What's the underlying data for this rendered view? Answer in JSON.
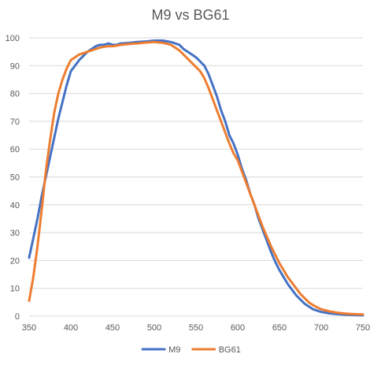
{
  "chart_data": {
    "type": "line",
    "title": "M9 vs BG61",
    "xlabel": "",
    "ylabel": "",
    "xlim": [
      350,
      750
    ],
    "ylim": [
      0,
      100
    ],
    "x_ticks": [
      350,
      400,
      450,
      500,
      550,
      600,
      650,
      700,
      750
    ],
    "y_ticks": [
      0,
      10,
      20,
      30,
      40,
      50,
      60,
      70,
      80,
      90,
      100
    ],
    "grid": true,
    "legend_position": "bottom",
    "series": [
      {
        "name": "M9",
        "color": "#4472C4",
        "points": [
          [
            350,
            21
          ],
          [
            355,
            28
          ],
          [
            360,
            35
          ],
          [
            365,
            43
          ],
          [
            370,
            50
          ],
          [
            375,
            57
          ],
          [
            380,
            64
          ],
          [
            385,
            71
          ],
          [
            390,
            77
          ],
          [
            395,
            83
          ],
          [
            400,
            88
          ],
          [
            405,
            90
          ],
          [
            410,
            92
          ],
          [
            415,
            93.5
          ],
          [
            420,
            95
          ],
          [
            425,
            96
          ],
          [
            430,
            97
          ],
          [
            435,
            97.5
          ],
          [
            440,
            97.5
          ],
          [
            445,
            98
          ],
          [
            450,
            97.5
          ],
          [
            455,
            97.5
          ],
          [
            460,
            98
          ],
          [
            470,
            98.2
          ],
          [
            480,
            98.5
          ],
          [
            490,
            98.7
          ],
          [
            500,
            99
          ],
          [
            510,
            99
          ],
          [
            520,
            98.5
          ],
          [
            530,
            97.5
          ],
          [
            535,
            96
          ],
          [
            540,
            95
          ],
          [
            545,
            94
          ],
          [
            550,
            93
          ],
          [
            555,
            91.5
          ],
          [
            560,
            90
          ],
          [
            565,
            87
          ],
          [
            570,
            83
          ],
          [
            575,
            79
          ],
          [
            580,
            74
          ],
          [
            585,
            70
          ],
          [
            590,
            65
          ],
          [
            595,
            62
          ],
          [
            600,
            58
          ],
          [
            605,
            53
          ],
          [
            610,
            49
          ],
          [
            615,
            44
          ],
          [
            620,
            40
          ],
          [
            625,
            35
          ],
          [
            630,
            31
          ],
          [
            635,
            27
          ],
          [
            640,
            23
          ],
          [
            645,
            19.5
          ],
          [
            650,
            16.5
          ],
          [
            655,
            14
          ],
          [
            660,
            11.5
          ],
          [
            665,
            9.5
          ],
          [
            670,
            7.5
          ],
          [
            675,
            6
          ],
          [
            680,
            4.5
          ],
          [
            685,
            3.5
          ],
          [
            690,
            2.5
          ],
          [
            695,
            2
          ],
          [
            700,
            1.5
          ],
          [
            710,
            1
          ],
          [
            720,
            0.7
          ],
          [
            730,
            0.5
          ],
          [
            740,
            0.4
          ],
          [
            750,
            0.3
          ]
        ]
      },
      {
        "name": "BG61",
        "color": "#ED7D31",
        "points": [
          [
            350,
            5.5
          ],
          [
            355,
            14
          ],
          [
            360,
            25
          ],
          [
            365,
            38
          ],
          [
            370,
            52
          ],
          [
            375,
            63
          ],
          [
            380,
            73
          ],
          [
            385,
            80
          ],
          [
            390,
            85
          ],
          [
            395,
            89
          ],
          [
            400,
            92
          ],
          [
            405,
            93
          ],
          [
            410,
            94
          ],
          [
            415,
            94.5
          ],
          [
            420,
            95
          ],
          [
            425,
            95.5
          ],
          [
            430,
            96
          ],
          [
            435,
            96.5
          ],
          [
            440,
            96.8
          ],
          [
            445,
            97
          ],
          [
            450,
            97
          ],
          [
            455,
            97.2
          ],
          [
            460,
            97.5
          ],
          [
            470,
            97.8
          ],
          [
            480,
            98
          ],
          [
            490,
            98.3
          ],
          [
            500,
            98.5
          ],
          [
            510,
            98.2
          ],
          [
            520,
            97.5
          ],
          [
            525,
            96.5
          ],
          [
            530,
            95.5
          ],
          [
            535,
            94
          ],
          [
            540,
            92.5
          ],
          [
            545,
            91
          ],
          [
            550,
            89.5
          ],
          [
            555,
            88
          ],
          [
            560,
            85.5
          ],
          [
            565,
            82
          ],
          [
            570,
            78
          ],
          [
            575,
            74
          ],
          [
            580,
            70
          ],
          [
            585,
            66
          ],
          [
            590,
            62
          ],
          [
            595,
            58.5
          ],
          [
            600,
            56
          ],
          [
            605,
            52
          ],
          [
            610,
            48
          ],
          [
            615,
            44
          ],
          [
            620,
            40
          ],
          [
            625,
            36
          ],
          [
            630,
            32
          ],
          [
            635,
            28.5
          ],
          [
            640,
            25
          ],
          [
            645,
            22
          ],
          [
            650,
            19
          ],
          [
            655,
            16.5
          ],
          [
            660,
            14
          ],
          [
            665,
            12
          ],
          [
            670,
            10
          ],
          [
            675,
            8
          ],
          [
            680,
            6.5
          ],
          [
            685,
            5
          ],
          [
            690,
            4
          ],
          [
            695,
            3.2
          ],
          [
            700,
            2.5
          ],
          [
            710,
            1.7
          ],
          [
            720,
            1.2
          ],
          [
            730,
            0.9
          ],
          [
            740,
            0.7
          ],
          [
            750,
            0.6
          ]
        ]
      }
    ]
  }
}
